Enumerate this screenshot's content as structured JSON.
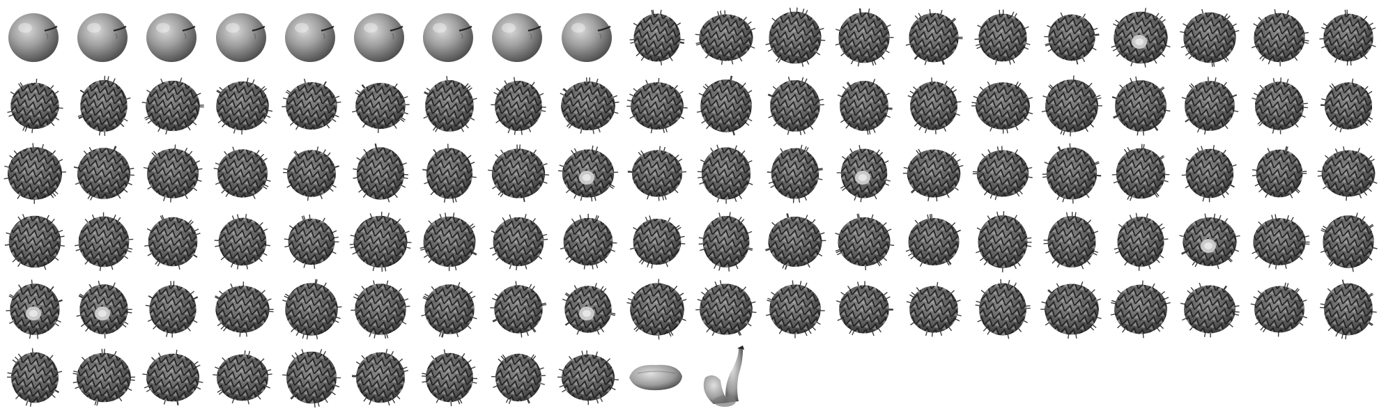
{
  "montage": {
    "columns": 20,
    "rows": 6,
    "tiles": [
      "apple",
      "apple",
      "apple",
      "apple",
      "apple",
      "apple",
      "apple",
      "apple",
      "apple",
      "pineapple",
      "pineapple",
      "pineapple",
      "pineapple",
      "pineapple",
      "pineapple",
      "pineapple",
      "pineapple-top",
      "pineapple",
      "pineapple",
      "pineapple",
      "pineapple",
      "pineapple",
      "pineapple",
      "pineapple",
      "pineapple",
      "pineapple",
      "pineapple",
      "pineapple",
      "pineapple",
      "pineapple",
      "pineapple",
      "pineapple",
      "pineapple",
      "pineapple",
      "pineapple",
      "pineapple",
      "pineapple",
      "pineapple",
      "pineapple",
      "pineapple",
      "pineapple",
      "pineapple",
      "pineapple",
      "pineapple",
      "pineapple",
      "pineapple",
      "pineapple",
      "pineapple",
      "pineapple-top",
      "pineapple",
      "pineapple",
      "pineapple",
      "pineapple-top",
      "pineapple",
      "pineapple",
      "pineapple",
      "pineapple",
      "pineapple",
      "pineapple",
      "pineapple",
      "pineapple",
      "pineapple",
      "pineapple",
      "pineapple",
      "pineapple",
      "pineapple",
      "pineapple",
      "pineapple",
      "pineapple",
      "pineapple",
      "pineapple",
      "pineapple",
      "pineapple",
      "pineapple",
      "pineapple",
      "pineapple",
      "pineapple",
      "pineapple-top",
      "pineapple",
      "pineapple",
      "pineapple-top",
      "pineapple-top",
      "pineapple",
      "pineapple",
      "pineapple",
      "pineapple",
      "pineapple",
      "pineapple",
      "pineapple-top",
      "pineapple",
      "pineapple",
      "pineapple",
      "pineapple",
      "pineapple",
      "pineapple",
      "pineapple",
      "pineapple",
      "pineapple",
      "pineapple",
      "pineapple",
      "pineapple",
      "pineapple",
      "pineapple",
      "pineapple",
      "pineapple",
      "pineapple",
      "pineapple",
      "pineapple",
      "pineapple",
      "banana-lying",
      "banana-bunch"
    ]
  }
}
